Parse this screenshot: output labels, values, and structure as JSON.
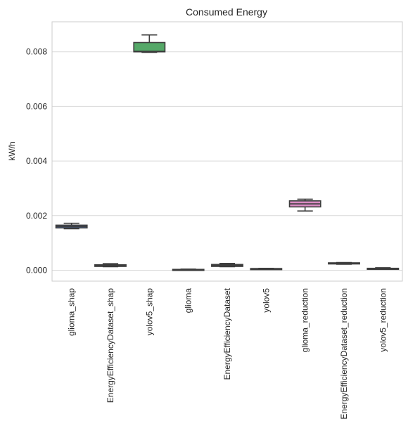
{
  "chart_data": {
    "type": "box",
    "title": "Consumed Energy",
    "xlabel": "",
    "ylabel": "kW/h",
    "ylim": [
      -0.0004,
      0.0091
    ],
    "yticks": [
      0.0,
      0.002,
      0.004,
      0.006,
      0.008
    ],
    "ytick_labels": [
      "0.000",
      "0.002",
      "0.004",
      "0.006",
      "0.008"
    ],
    "grid": "horizontal",
    "categories": [
      "glioma_shap",
      "EnergyEfficiencyDataset_shap",
      "yolov5_shap",
      "glioma",
      "EnergyEfficiencyDataset",
      "yolov5",
      "glioma_reduction",
      "EnergyEfficiencyDataset_reduction",
      "yolov5_reduction"
    ],
    "boxes": [
      {
        "category": "glioma_shap",
        "whislo": 0.00152,
        "q1": 0.00155,
        "med": 0.0016,
        "q3": 0.00165,
        "whishi": 0.00172,
        "color": "#4c72b0"
      },
      {
        "category": "EnergyEfficiencyDataset_shap",
        "whislo": 0.00013,
        "q1": 0.00014,
        "med": 0.00017,
        "q3": 0.0002,
        "whishi": 0.00024,
        "color": "#dd8452"
      },
      {
        "category": "yolov5_shap",
        "whislo": 0.00798,
        "q1": 0.008,
        "med": 0.00802,
        "q3": 0.00834,
        "whishi": 0.00862,
        "color": "#55a868"
      },
      {
        "category": "glioma",
        "whislo": 2e-05,
        "q1": 2e-05,
        "med": 3e-05,
        "q3": 3e-05,
        "whishi": 4e-05,
        "color": "#c44e52"
      },
      {
        "category": "EnergyEfficiencyDataset",
        "whislo": 0.00013,
        "q1": 0.00014,
        "med": 0.00017,
        "q3": 0.00021,
        "whishi": 0.00025,
        "color": "#8172b3"
      },
      {
        "category": "yolov5",
        "whislo": 4e-05,
        "q1": 5e-05,
        "med": 6e-05,
        "q3": 6e-05,
        "whishi": 7e-05,
        "color": "#937860"
      },
      {
        "category": "glioma_reduction",
        "whislo": 0.00217,
        "q1": 0.00232,
        "med": 0.00243,
        "q3": 0.00254,
        "whishi": 0.0026,
        "color": "#da8bc3"
      },
      {
        "category": "EnergyEfficiencyDataset_reduction",
        "whislo": 0.00022,
        "q1": 0.00023,
        "med": 0.00025,
        "q3": 0.00027,
        "whishi": 0.00028,
        "color": "#8c8c8c"
      },
      {
        "category": "yolov5_reduction",
        "whislo": 4e-05,
        "q1": 5e-05,
        "med": 6e-05,
        "q3": 7e-05,
        "whishi": 9e-05,
        "color": "#ccb974"
      }
    ]
  }
}
